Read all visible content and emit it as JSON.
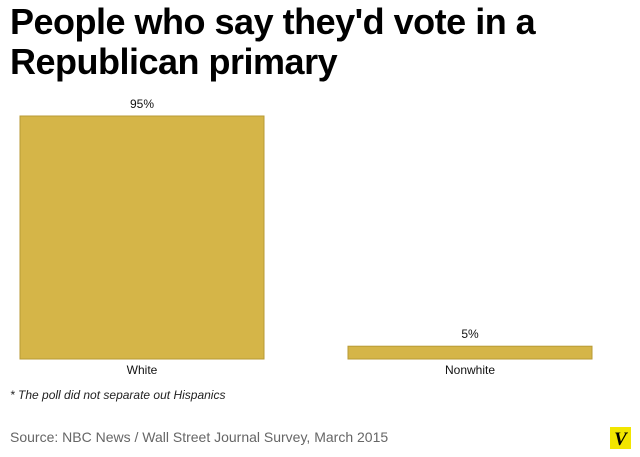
{
  "title": "People who say they'd vote in a Republican primary",
  "footnote": "* The poll did not separate out Hispanics",
  "source": "Source: NBC News / Wall Street Journal Survey, March 2015",
  "logo": {
    "icon": "vox-logo-icon",
    "letter": "V",
    "background": "#f2e600",
    "color": "#000000"
  },
  "chart_data": {
    "type": "bar",
    "categories": [
      "White",
      "Nonwhite"
    ],
    "values": [
      95,
      5
    ],
    "value_labels": [
      "95%",
      "5%"
    ],
    "ylim": [
      0,
      95
    ],
    "grid": false,
    "legend": "none",
    "bar_color": "#d5b548",
    "bar_edge_color": "#b89a35"
  }
}
